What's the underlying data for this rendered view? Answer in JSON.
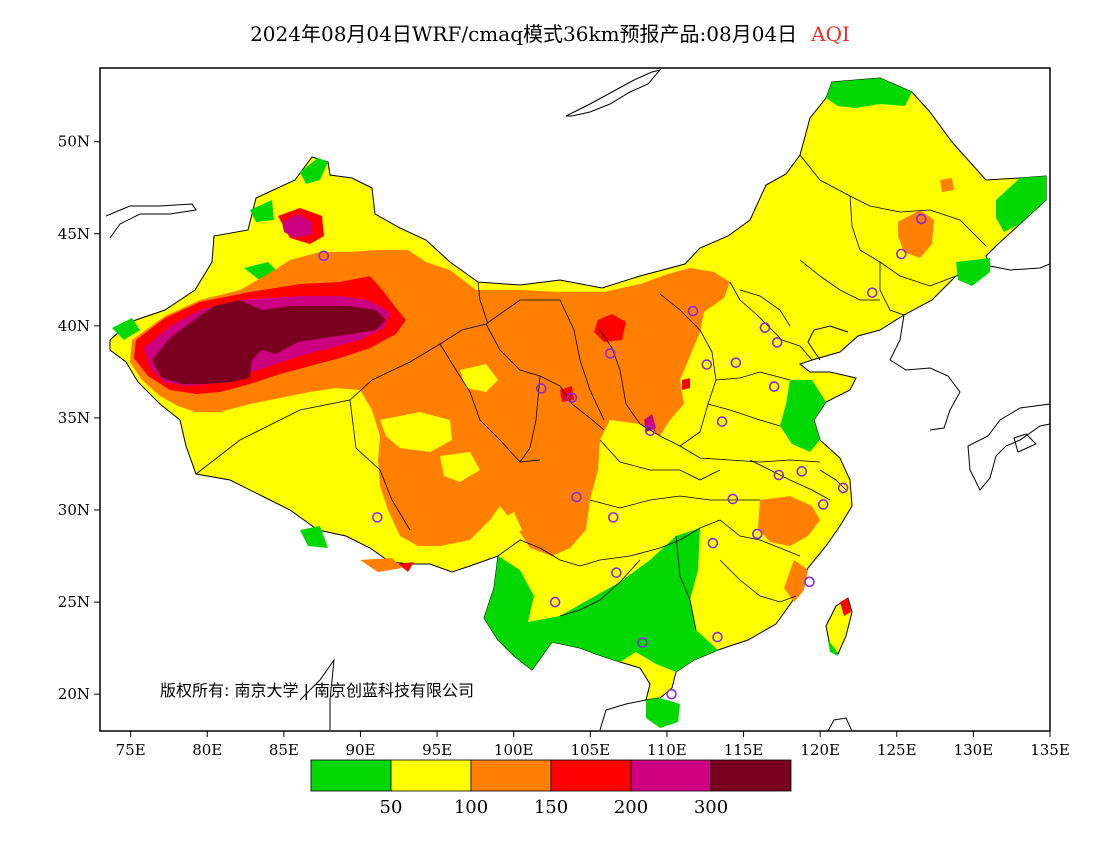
{
  "title": {
    "main": "2024年08月04日WRF/cmaq模式36km预报产品:08月04日",
    "product": "AQI"
  },
  "map": {
    "lon_range": [
      73,
      135
    ],
    "lat_range": [
      18,
      54
    ],
    "lon_ticks": [
      "75E",
      "80E",
      "85E",
      "90E",
      "95E",
      "100E",
      "105E",
      "110E",
      "115E",
      "120E",
      "125E",
      "130E",
      "135E"
    ],
    "lat_ticks": [
      "20N",
      "25N",
      "30N",
      "35N",
      "40N",
      "45N",
      "50N"
    ],
    "copyright": "版权所有: 南京大学 | 南京创蓝科技有限公司",
    "cities": [
      {
        "lon": 87.6,
        "lat": 43.8
      },
      {
        "lon": 91.1,
        "lat": 29.6
      },
      {
        "lon": 101.8,
        "lat": 36.6
      },
      {
        "lon": 103.8,
        "lat": 36.1
      },
      {
        "lon": 106.3,
        "lat": 38.5
      },
      {
        "lon": 111.7,
        "lat": 40.8
      },
      {
        "lon": 116.4,
        "lat": 39.9
      },
      {
        "lon": 117.2,
        "lat": 39.1
      },
      {
        "lon": 114.5,
        "lat": 38.0
      },
      {
        "lon": 112.6,
        "lat": 37.9
      },
      {
        "lon": 117.0,
        "lat": 36.7
      },
      {
        "lon": 113.6,
        "lat": 34.8
      },
      {
        "lon": 108.9,
        "lat": 34.3
      },
      {
        "lon": 104.1,
        "lat": 30.7
      },
      {
        "lon": 106.5,
        "lat": 29.6
      },
      {
        "lon": 114.3,
        "lat": 30.6
      },
      {
        "lon": 117.3,
        "lat": 31.9
      },
      {
        "lon": 118.8,
        "lat": 32.1
      },
      {
        "lon": 121.5,
        "lat": 31.2
      },
      {
        "lon": 120.2,
        "lat": 30.3
      },
      {
        "lon": 115.9,
        "lat": 28.7
      },
      {
        "lon": 113.0,
        "lat": 28.2
      },
      {
        "lon": 106.7,
        "lat": 26.6
      },
      {
        "lon": 102.7,
        "lat": 25.0
      },
      {
        "lon": 108.4,
        "lat": 22.8
      },
      {
        "lon": 113.3,
        "lat": 23.1
      },
      {
        "lon": 119.3,
        "lat": 26.1
      },
      {
        "lon": 110.3,
        "lat": 20.0
      },
      {
        "lon": 123.4,
        "lat": 41.8
      },
      {
        "lon": 125.3,
        "lat": 43.9
      },
      {
        "lon": 126.6,
        "lat": 45.8
      }
    ]
  },
  "legend": {
    "colors": [
      "#00d800",
      "#ffff00",
      "#ff8000",
      "#ff0000",
      "#cc0080",
      "#7a0020"
    ],
    "labels": [
      "50",
      "100",
      "150",
      "200",
      "300"
    ]
  }
}
